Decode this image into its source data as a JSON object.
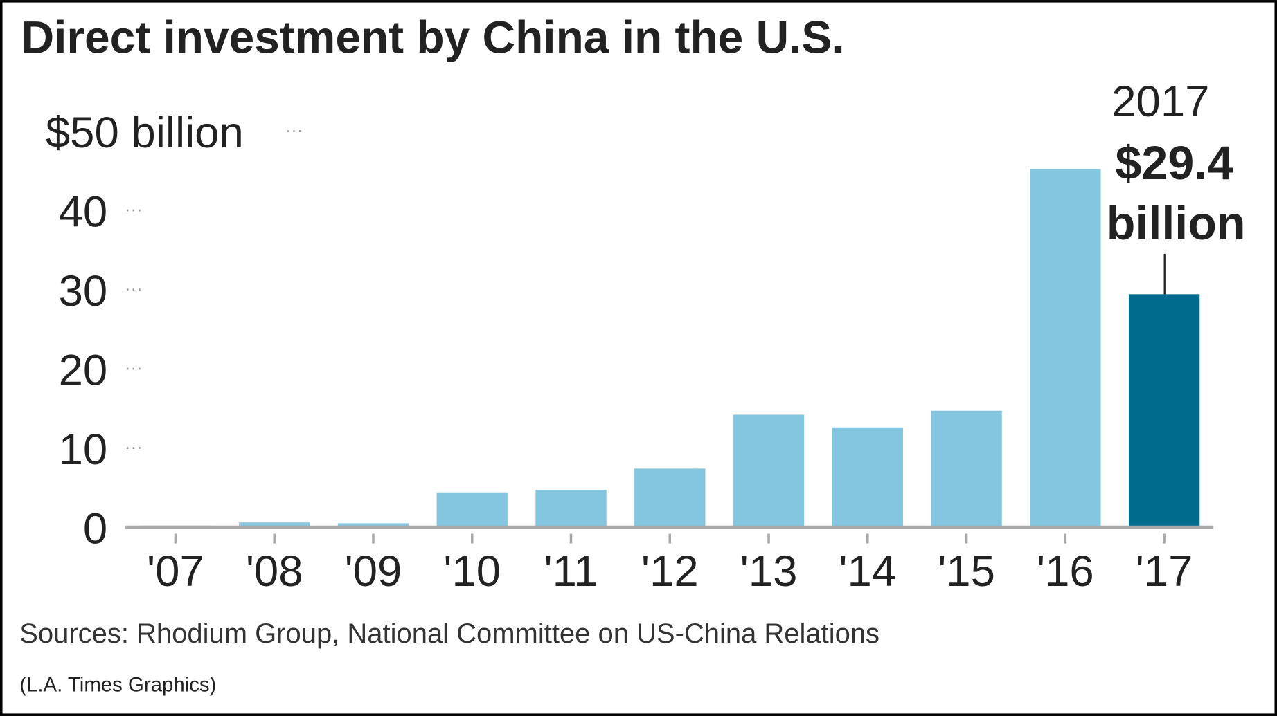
{
  "chart_data": {
    "type": "bar",
    "title": "Direct investment by China in the U.S.",
    "categories": [
      "'07",
      "'08",
      "'09",
      "'10",
      "'11",
      "'12",
      "'13",
      "'14",
      "'15",
      "'16",
      "'17"
    ],
    "values": [
      0.2,
      0.6,
      0.5,
      4.4,
      4.7,
      7.4,
      14.2,
      12.6,
      14.7,
      45.2,
      29.4
    ],
    "ylim": [
      0,
      50
    ],
    "yticks": [
      0,
      10,
      20,
      30,
      40,
      50
    ],
    "ytick_labels": [
      "0",
      "10",
      "20",
      "30",
      "40",
      "$50 billion"
    ],
    "grid": false,
    "colors": {
      "bar": "#84c6e0",
      "highlight": "#006b8c",
      "axis": "#a8a8a8",
      "text": "#222222"
    },
    "annotation": {
      "year": "2017",
      "value": "$29.4",
      "unit": "billion"
    },
    "source": "Sources: Rhodium Group, National Committee on US-China Relations",
    "credit": "(L.A. Times Graphics)"
  }
}
